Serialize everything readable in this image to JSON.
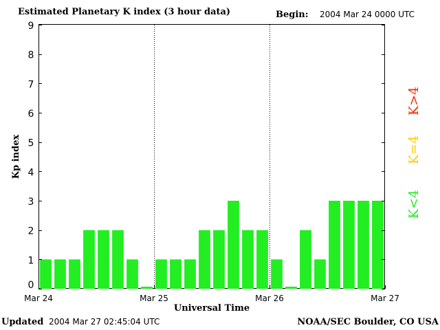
{
  "header": {
    "title": "Estimated Planetary K index (3 hour data)",
    "begin_label": "Begin:",
    "begin_value": "2004 Mar 24 0000 UTC"
  },
  "footer": {
    "updated_label": "Updated",
    "updated_value": "2004 Mar 27 02:45:04 UTC",
    "credit": "NOAA/SEC Boulder, CO USA"
  },
  "legend": [
    {
      "label": "K<4",
      "color": "#22ee22"
    },
    {
      "label": "K=4",
      "color": "#ffcc00"
    },
    {
      "label": "K>4",
      "color": "#ff2a00"
    }
  ],
  "chart_data": {
    "type": "bar",
    "ylabel": "Kp index",
    "xlabel": "Universal Time",
    "ylim": [
      0,
      9
    ],
    "yticks": [
      "0",
      "1",
      "2",
      "3",
      "4",
      "5",
      "6",
      "7",
      "8",
      "9"
    ],
    "xtick_labels": [
      "Mar 24",
      "Mar 25",
      "Mar 26",
      "Mar 27"
    ],
    "day_separators": "dotted",
    "bar_color": "#22ee22",
    "values": [
      1,
      1,
      1,
      2,
      2,
      2,
      1,
      0,
      1,
      1,
      1,
      2,
      2,
      3,
      2,
      2,
      1,
      0,
      2,
      1,
      3,
      3,
      3,
      3
    ]
  }
}
